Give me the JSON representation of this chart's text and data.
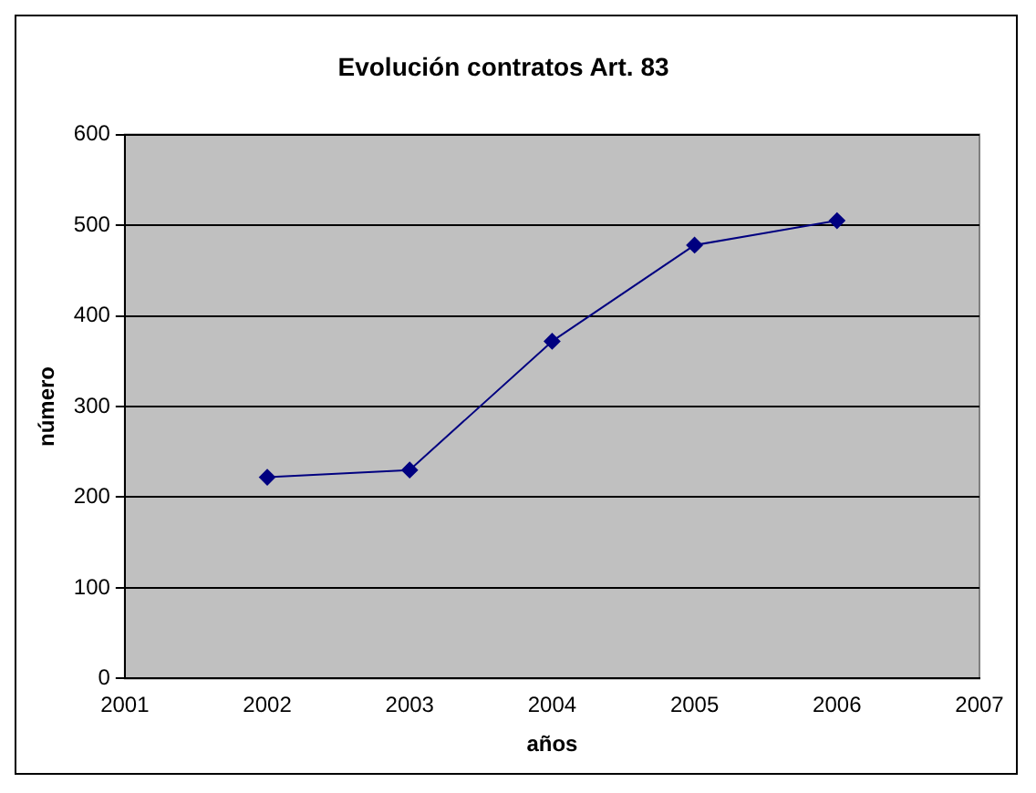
{
  "chart_data": {
    "type": "line",
    "title": "Evolución contratos Art. 83",
    "xlabel": "años",
    "ylabel": "número",
    "x": [
      2002,
      2003,
      2004,
      2005,
      2006
    ],
    "series": [
      {
        "color": "#000080",
        "values": [
          222,
          230,
          372,
          478,
          505
        ]
      }
    ],
    "xlim": [
      2001,
      2007
    ],
    "xticks": [
      2001,
      2002,
      2003,
      2004,
      2005,
      2006,
      2007
    ],
    "ylim": [
      0,
      600
    ],
    "yticks": [
      0,
      100,
      200,
      300,
      400,
      500,
      600
    ],
    "grid": "y",
    "legend": false,
    "marker": "diamond",
    "line_style": "solid"
  }
}
